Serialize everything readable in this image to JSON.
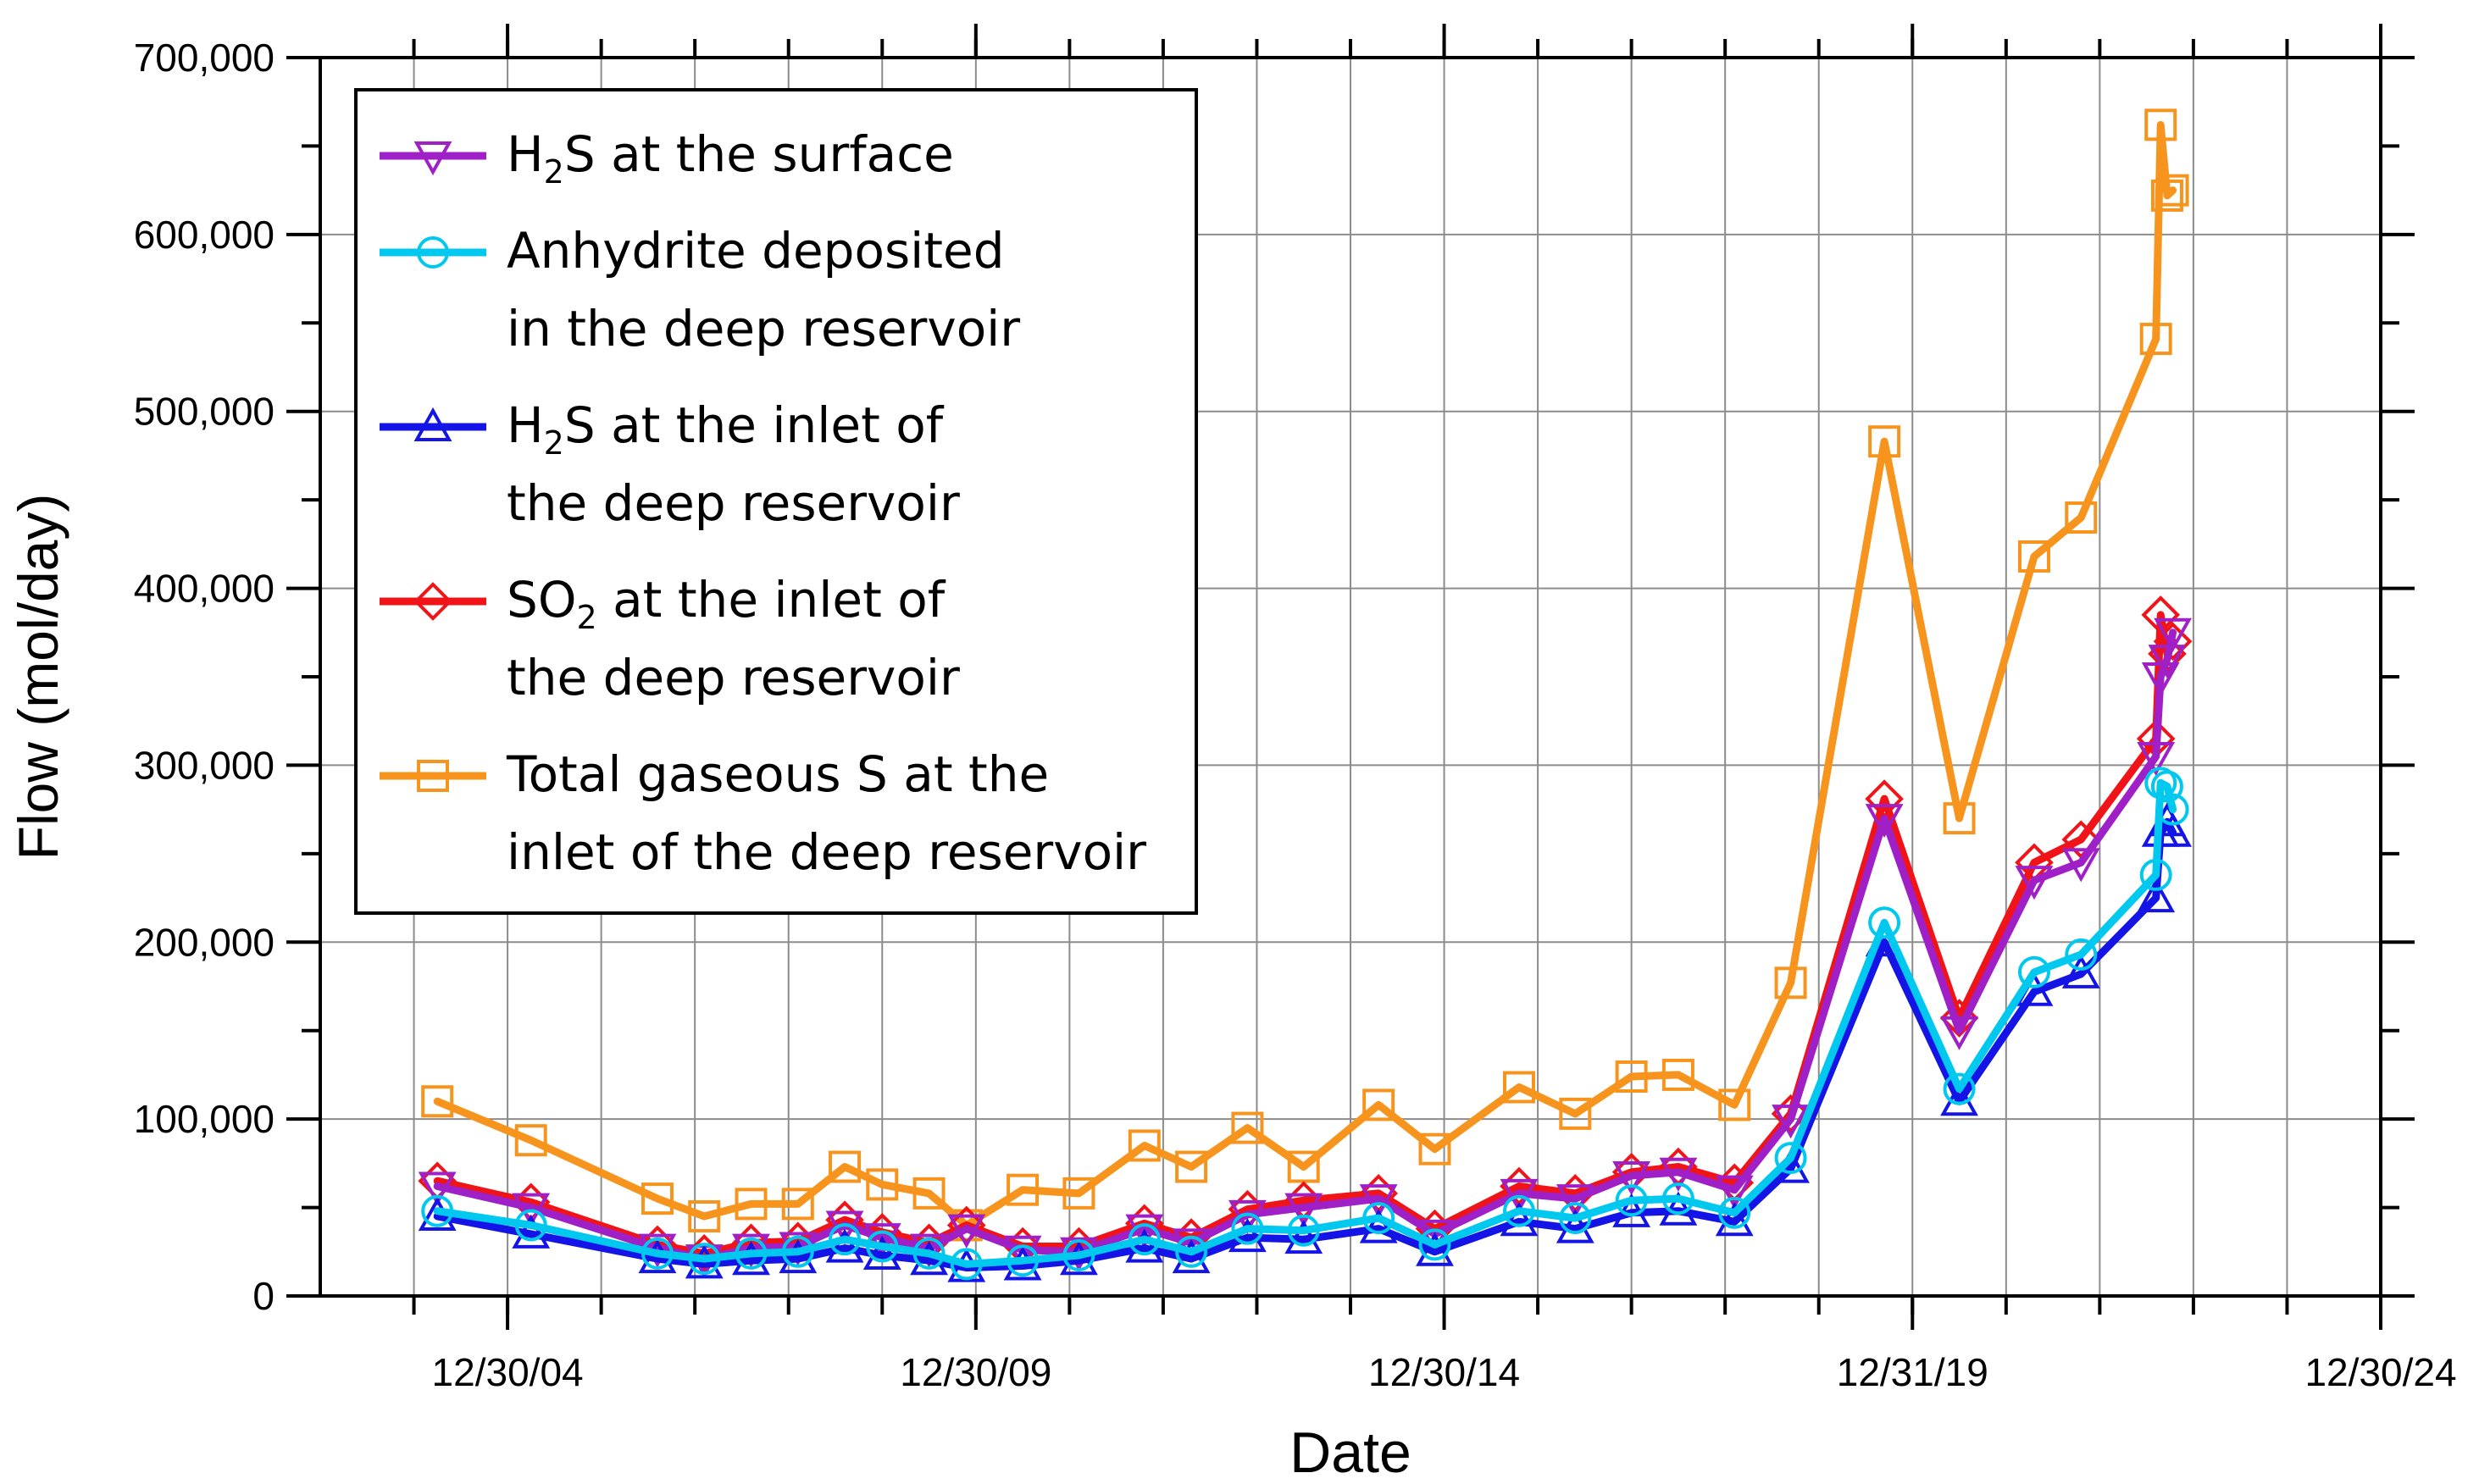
{
  "chart_data": {
    "type": "line",
    "title": "",
    "xlabel": "Date",
    "ylabel": "Flow (mol/day)",
    "xlim": [
      2003,
      2025
    ],
    "ylim": [
      0,
      700000
    ],
    "x_ticks": [
      {
        "x": 2005,
        "label": "12/30/04"
      },
      {
        "x": 2010,
        "label": "12/30/09"
      },
      {
        "x": 2015,
        "label": "12/30/14"
      },
      {
        "x": 2020,
        "label": "12/31/19"
      },
      {
        "x": 2025,
        "label": "12/30/24"
      }
    ],
    "y_ticks": [
      {
        "y": 0,
        "label": "0"
      },
      {
        "y": 100000,
        "label": "100,000"
      },
      {
        "y": 200000,
        "label": "200,000"
      },
      {
        "y": 300000,
        "label": "300,000"
      },
      {
        "y": 400000,
        "label": "400,000"
      },
      {
        "y": 500000,
        "label": "500,000"
      },
      {
        "y": 600000,
        "label": "600,000"
      },
      {
        "y": 700000,
        "label": "700,000"
      }
    ],
    "grid": true,
    "legend_position": "top-left",
    "series": [
      {
        "name": "H2S at the surface",
        "legend_lines": [
          [
            {
              "t": "H"
            },
            {
              "t": "2",
              "sub": true
            },
            {
              "t": "S at the surface"
            }
          ]
        ],
        "color": "#a020c8",
        "marker": "triangle-down",
        "x": [
          2004.25,
          2005.25,
          2006.6,
          2007.1,
          2007.6,
          2008.1,
          2008.6,
          2009.0,
          2009.5,
          2009.9,
          2010.5,
          2011.1,
          2011.8,
          2012.3,
          2012.9,
          2013.5,
          2014.3,
          2014.9,
          2015.8,
          2016.4,
          2017.0,
          2017.5,
          2018.1,
          2018.7,
          2019.7,
          2020.5,
          2021.3,
          2021.8,
          2022.6,
          2022.65,
          2022.72,
          2022.78
        ],
        "y": [
          62000,
          50000,
          27000,
          21000,
          27000,
          28000,
          40000,
          33000,
          27000,
          38000,
          26000,
          25000,
          38000,
          30000,
          46000,
          50000,
          55000,
          35000,
          58000,
          55000,
          68000,
          70000,
          60000,
          100000,
          270000,
          150000,
          235000,
          245000,
          305000,
          350000,
          360000,
          375000
        ]
      },
      {
        "name": "Anhydrite deposited in the deep reservoir",
        "legend_lines": [
          [
            {
              "t": "Anhydrite deposited"
            }
          ],
          [
            {
              "t": "in the deep reservoir"
            }
          ]
        ],
        "color": "#00c8ee",
        "marker": "circle",
        "x": [
          2004.25,
          2005.25,
          2006.6,
          2007.1,
          2007.6,
          2008.1,
          2008.6,
          2009.0,
          2009.5,
          2009.9,
          2010.5,
          2011.1,
          2011.8,
          2012.3,
          2012.9,
          2013.5,
          2014.3,
          2014.9,
          2015.8,
          2016.4,
          2017.0,
          2017.5,
          2018.1,
          2018.7,
          2019.7,
          2020.5,
          2021.3,
          2021.8,
          2022.6,
          2022.65,
          2022.72,
          2022.78
        ],
        "y": [
          48000,
          40000,
          24000,
          21000,
          24000,
          25000,
          32000,
          28000,
          24000,
          18000,
          20000,
          23000,
          32000,
          25000,
          38000,
          37000,
          44000,
          29000,
          48000,
          44000,
          54000,
          55000,
          47000,
          78000,
          211000,
          117000,
          183000,
          193000,
          238000,
          290000,
          288000,
          275000
        ]
      },
      {
        "name": "H2S at the inlet of the deep reservoir",
        "legend_lines": [
          [
            {
              "t": "H"
            },
            {
              "t": "2",
              "sub": true
            },
            {
              "t": "S at the inlet of"
            }
          ],
          [
            {
              "t": "the deep reservoir"
            }
          ]
        ],
        "color": "#1414e6",
        "marker": "triangle-up",
        "x": [
          2004.25,
          2005.25,
          2006.6,
          2007.1,
          2007.6,
          2008.1,
          2008.6,
          2009.0,
          2009.5,
          2009.9,
          2010.5,
          2011.1,
          2011.8,
          2012.3,
          2012.9,
          2013.5,
          2014.3,
          2014.9,
          2015.8,
          2016.4,
          2017.0,
          2017.5,
          2018.1,
          2018.7,
          2019.7,
          2020.5,
          2021.3,
          2021.8,
          2022.6,
          2022.65,
          2022.72,
          2022.78
        ],
        "y": [
          45000,
          35000,
          21000,
          18000,
          20000,
          21000,
          27000,
          23000,
          20000,
          16000,
          17000,
          20000,
          27000,
          21000,
          33000,
          32000,
          38000,
          25000,
          42000,
          38000,
          47000,
          48000,
          42000,
          72000,
          200000,
          110000,
          172000,
          182000,
          225000,
          262000,
          268000,
          262000
        ]
      },
      {
        "name": "SO2 at the inlet of the deep reservoir",
        "legend_lines": [
          [
            {
              "t": "SO"
            },
            {
              "t": "2",
              "sub": true
            },
            {
              "t": " at the inlet of"
            }
          ],
          [
            {
              "t": "the deep reservoir"
            }
          ]
        ],
        "color": "#f01418",
        "marker": "diamond",
        "x": [
          2004.25,
          2005.25,
          2006.6,
          2007.1,
          2007.6,
          2008.1,
          2008.6,
          2009.0,
          2009.5,
          2009.9,
          2010.5,
          2011.1,
          2011.8,
          2012.3,
          2012.9,
          2013.5,
          2014.3,
          2014.9,
          2015.8,
          2016.4,
          2017.0,
          2017.5,
          2018.1,
          2018.7,
          2019.7,
          2020.5,
          2021.3,
          2021.8,
          2022.6,
          2022.65,
          2022.72,
          2022.78
        ],
        "y": [
          65000,
          53000,
          29000,
          24000,
          30000,
          31000,
          43000,
          36000,
          30000,
          40000,
          28000,
          28000,
          41000,
          33000,
          49000,
          54000,
          58000,
          38000,
          62000,
          58000,
          70000,
          73000,
          64000,
          103000,
          281000,
          157000,
          245000,
          258000,
          315000,
          385000,
          363000,
          370000
        ]
      },
      {
        "name": "Total gaseous S at the inlet of the deep reservoir",
        "legend_lines": [
          [
            {
              "t": "Total gaseous S at the"
            }
          ],
          [
            {
              "t": "inlet of the deep reservoir"
            }
          ]
        ],
        "color": "#f7941d",
        "marker": "square",
        "x": [
          2004.25,
          2005.25,
          2006.6,
          2007.1,
          2007.6,
          2008.1,
          2008.6,
          2009.0,
          2009.5,
          2009.9,
          2010.5,
          2011.1,
          2011.8,
          2012.3,
          2012.9,
          2013.5,
          2014.3,
          2014.9,
          2015.8,
          2016.4,
          2017.0,
          2017.5,
          2018.1,
          2018.7,
          2019.7,
          2020.5,
          2021.3,
          2021.8,
          2022.6,
          2022.65,
          2022.72,
          2022.78
        ],
        "y": [
          110000,
          88000,
          55000,
          45000,
          52000,
          52000,
          73000,
          63000,
          58000,
          40000,
          60000,
          58000,
          85000,
          73000,
          95000,
          73000,
          108000,
          83000,
          118000,
          103000,
          124000,
          125000,
          108000,
          177000,
          483000,
          270000,
          418000,
          440000,
          541000,
          662000,
          622000,
          625000
        ]
      }
    ]
  }
}
